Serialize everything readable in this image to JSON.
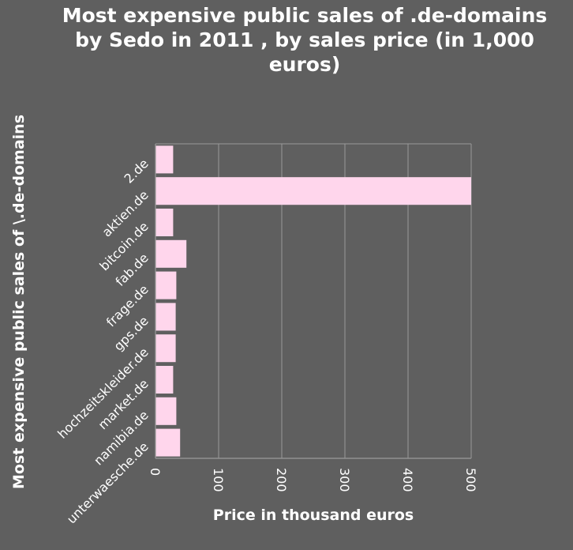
{
  "chart_data": {
    "type": "bar",
    "orientation": "horizontal",
    "title": "Most expensive public sales of .de-domains by Sedo in 2011 , by sales price (in 1,000 euros)",
    "title_lines": [
      "Most expensive public sales of .de-domains",
      "by Sedo in 2011 , by sales price (in 1,000",
      "euros)"
    ],
    "xlabel": "Price in thousand euros",
    "ylabel": "Most expensive public sales of \\.de-domains",
    "categories": [
      "2.de",
      "aktien.de",
      "bitcoin.de",
      "fab.de",
      "frage.de",
      "gps.de",
      "hochzeitskleider.de",
      "market.de",
      "namibia.de",
      "unterwaesche.de"
    ],
    "values": [
      28,
      500,
      28,
      49,
      33,
      32,
      32,
      28,
      33,
      39
    ],
    "xlim": [
      0,
      500
    ],
    "xticks": [
      "0",
      "100",
      "200",
      "300",
      "400",
      "500"
    ],
    "grid": "vertical",
    "bar_color": "#ffd6ec",
    "background_color": "#5f5f5f"
  }
}
